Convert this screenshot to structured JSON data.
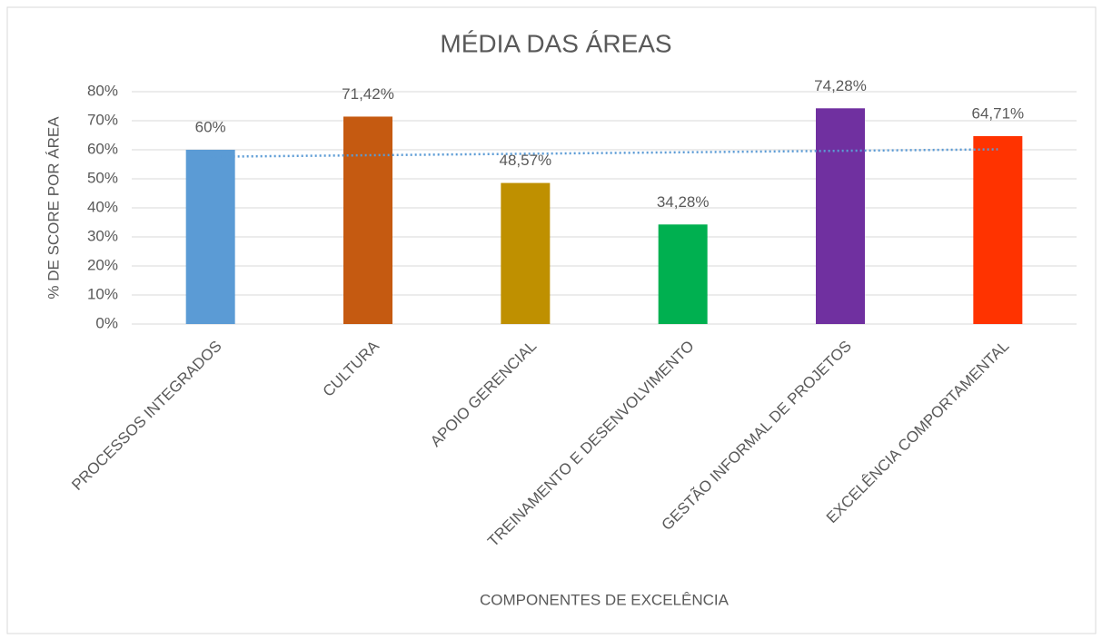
{
  "chart_data": {
    "type": "bar",
    "title": "MÉDIA DAS ÁREAS",
    "x_label": "COMPONENTES DE EXCELÊNCIA",
    "y_label": "% DE SCORE POR ÁREA",
    "categories": [
      "PROCESSOS INTEGRADOS",
      "CULTURA",
      "APOIO GERENCIAL",
      "TREINAMENTO E DESENVOLVIMENTO",
      "GESTÃO INFORMAL DE PROJETOS",
      "EXCELÊNCIA COMPORTAMENTAL"
    ],
    "values": [
      60,
      71.42,
      48.57,
      34.28,
      74.28,
      64.71
    ],
    "value_labels": [
      "60%",
      "71,42%",
      "48,57%",
      "34,28%",
      "74,28%",
      "64,71%"
    ],
    "colors": [
      "#5b9bd5",
      "#c55a11",
      "#bf9000",
      "#00b050",
      "#7030a0",
      "#ff3300"
    ],
    "trendline": true,
    "trendline_color": "#5b9bd5",
    "ylim": [
      0,
      80
    ],
    "yticks": [
      {
        "value": 0,
        "label": "0%"
      },
      {
        "value": 10,
        "label": "10%"
      },
      {
        "value": 20,
        "label": "20%"
      },
      {
        "value": 30,
        "label": "30%"
      },
      {
        "value": 40,
        "label": "40%"
      },
      {
        "value": 50,
        "label": "50%"
      },
      {
        "value": 60,
        "label": "60%"
      },
      {
        "value": 70,
        "label": "70%"
      },
      {
        "value": 80,
        "label": "80%"
      }
    ],
    "grid": true
  }
}
